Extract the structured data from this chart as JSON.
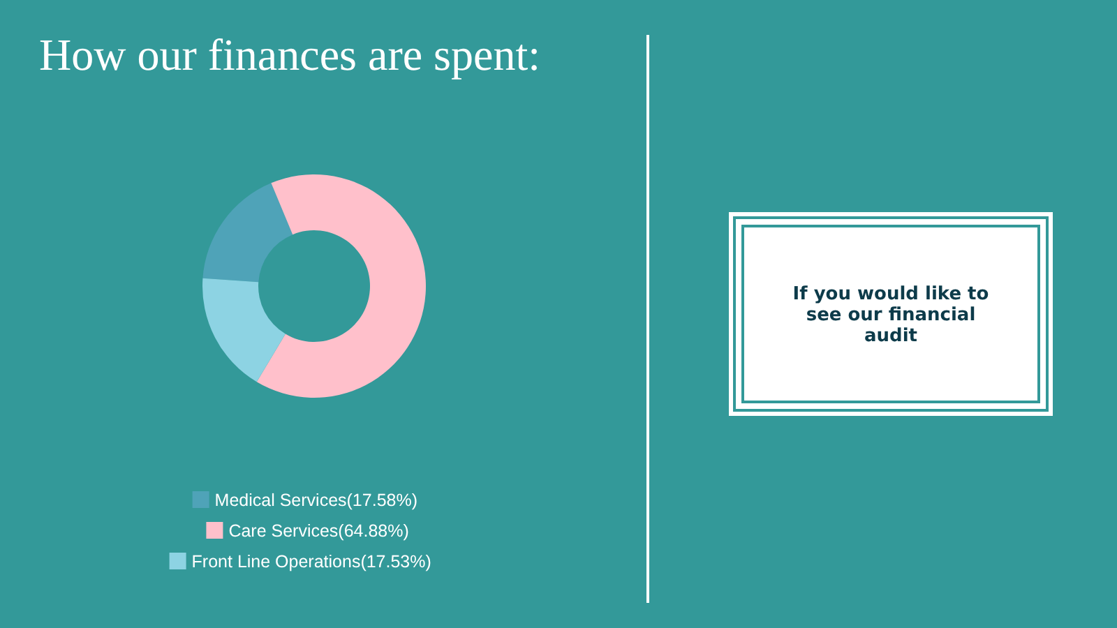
{
  "chart_data": [
    {
      "type": "donut",
      "title": "How our finances are spent:",
      "categories": [
        "Medical Services(17.58%)",
        "Care Services(64.88%)",
        "Front Line Operations(17.53%)"
      ],
      "values": [
        17.58,
        64.88,
        17.53
      ],
      "colors": [
        "#4fa3b8",
        "#ffc0cb",
        "#8dd3e3"
      ],
      "legend": "bottom"
    },
    {
      "type": "other",
      "annotations": [
        "If you would like to see our financial audit"
      ]
    }
  ]
}
